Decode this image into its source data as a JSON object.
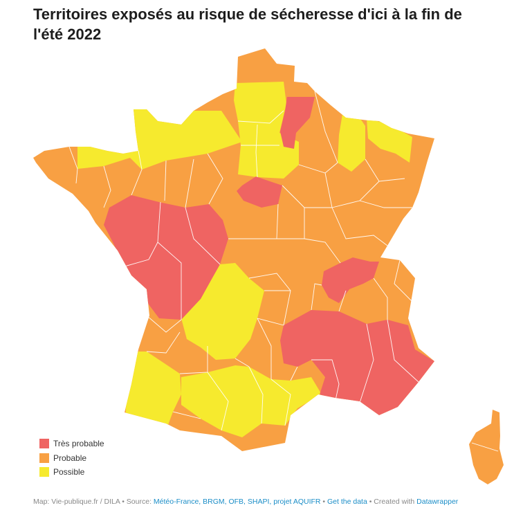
{
  "title": "Territoires exposés au risque de sécheresse d'ici à la fin de l'été 2022",
  "colors": {
    "tres_probable": "#ef6462",
    "probable": "#f8a043",
    "possible": "#f6ea2e",
    "border": "#ffffff"
  },
  "legend": [
    {
      "label": "Très probable",
      "color": "#ef6462"
    },
    {
      "label": "Probable",
      "color": "#f8a043"
    },
    {
      "label": "Possible",
      "color": "#f6ea2e"
    }
  ],
  "footer": {
    "map_credit": "Map: Vie-publique.fr / DILA",
    "source_prefix": " • Source: ",
    "sources": "Météo-France, BRGM, OFB, SHAPI, projet AQUIFR",
    "sep1": " • ",
    "get_data": "Get the data",
    "sep2": " • Created with ",
    "tool": "Datawrapper"
  }
}
